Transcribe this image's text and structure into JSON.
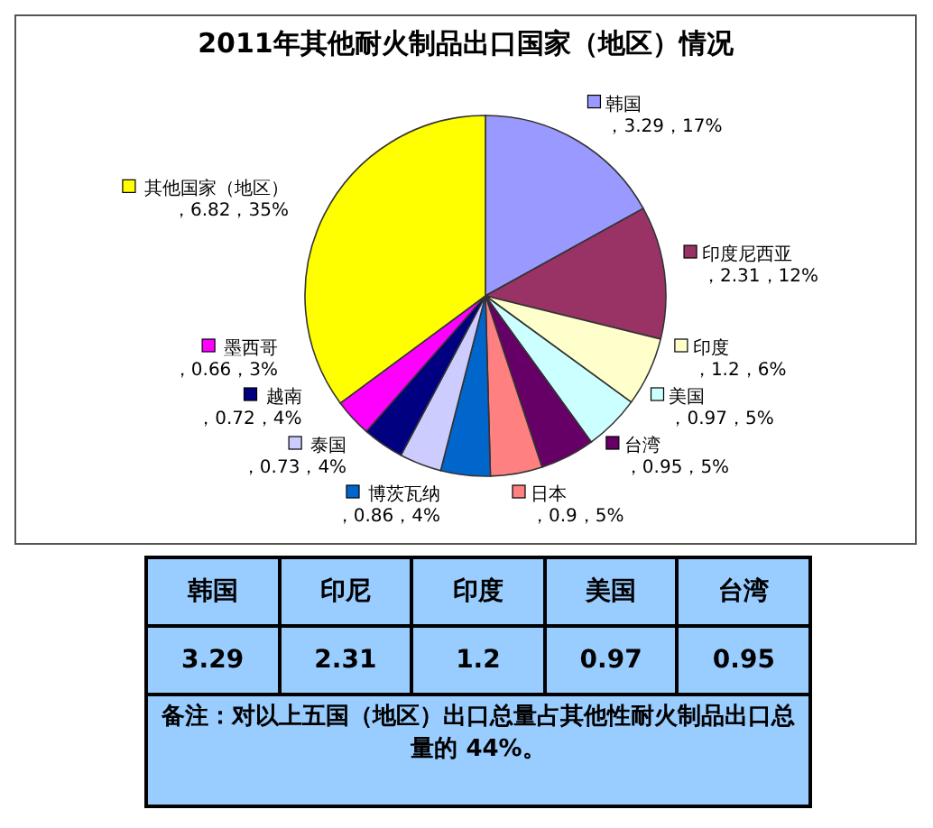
{
  "chart_data": [
    {
      "type": "pie",
      "title": "2011年其他耐火制品出口国家（地区）情况",
      "categories": [
        "韩国",
        "印度尼西亚",
        "印度",
        "美国",
        "台湾",
        "日本",
        "博茨瓦纳",
        "泰国",
        "越南",
        "墨西哥",
        "其他国家（地区）"
      ],
      "values": [
        3.29,
        2.31,
        1.2,
        0.97,
        0.95,
        0.9,
        0.86,
        0.73,
        0.72,
        0.66,
        6.82
      ],
      "value_labels": [
        "，3.29，17%",
        "，2.31，12%",
        "，1.2，6%",
        "，0.97，5%",
        "，0.95，5%",
        "，0.9，5%",
        "，0.86，4%",
        "，0.73，4%",
        "，0.72，4%",
        "，0.66，3%",
        "，6.82，35%"
      ],
      "colors": [
        "#9999ff",
        "#993366",
        "#ffffcc",
        "#ccffff",
        "#660066",
        "#ff8080",
        "#0066cc",
        "#ccccff",
        "#000080",
        "#ff00ff",
        "#ffff00"
      ],
      "legend": "bottom left"
    },
    {
      "type": "other",
      "categories": [
        "韩国",
        "印尼",
        "印度",
        "美国",
        "台湾"
      ],
      "values": [
        3.29,
        2.31,
        1.2,
        0.97,
        0.95
      ],
      "data_labels": true,
      "annotations": [
        "备注：对以上五国（地区）出口总量占其他性耐火制品出口总量的 44%。"
      ]
    }
  ]
}
